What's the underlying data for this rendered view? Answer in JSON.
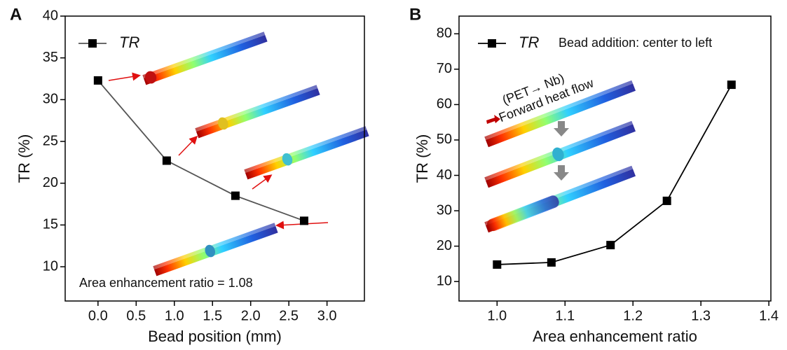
{
  "chart_data": [
    {
      "type": "line",
      "panel_label": "A",
      "x_label": "Bead position (mm)",
      "y_label": "TR (%)",
      "xlim": [
        -0.43,
        3.49
      ],
      "xticks": [
        {
          "value": 0,
          "label": "0.0"
        },
        {
          "value": 0.5,
          "label": "0.5"
        },
        {
          "value": 1,
          "label": "1.0"
        },
        {
          "value": 1.5,
          "label": "1.5"
        },
        {
          "value": 2,
          "label": "2.0"
        },
        {
          "value": 2.5,
          "label": "2.5"
        },
        {
          "value": 3,
          "label": "3.0"
        }
      ],
      "ylim": [
        5.9,
        40
      ],
      "yticks": [
        10,
        15,
        20,
        25,
        30,
        35,
        40
      ],
      "x": [
        0,
        0.9,
        1.8,
        2.7
      ],
      "series": [
        {
          "name": "TR",
          "color": "#555555",
          "marker_color": "#000000",
          "values": [
            32.3,
            22.7,
            18.5,
            15.5
          ]
        }
      ],
      "legend": "upper left",
      "annotations": [
        "Area enhancement ratio = 1.08"
      ]
    },
    {
      "type": "line",
      "panel_label": "B",
      "x_label": "Area enhancement ratio",
      "y_label": "TR (%)",
      "xlim": [
        0.944,
        1.403
      ],
      "xticks": [
        {
          "value": 1,
          "label": "1.0"
        },
        {
          "value": 1.1,
          "label": "1.1"
        },
        {
          "value": 1.2,
          "label": "1.2"
        },
        {
          "value": 1.3,
          "label": "1.3"
        },
        {
          "value": 1.4,
          "label": "1.4"
        }
      ],
      "ylim": [
        4.5,
        85
      ],
      "yticks": [
        10,
        20,
        30,
        40,
        50,
        60,
        70,
        80
      ],
      "x": [
        1.0,
        1.08,
        1.167,
        1.25,
        1.345
      ],
      "series": [
        {
          "name": "TR",
          "color": "#000000",
          "marker_color": "#000000",
          "values": [
            14.8,
            15.4,
            20.3,
            32.8,
            65.6
          ]
        }
      ],
      "legend": "upper left",
      "annotations": [
        "Bead addition: center to left",
        "(PET→ Nb)",
        "Forward heat flow"
      ]
    }
  ]
}
